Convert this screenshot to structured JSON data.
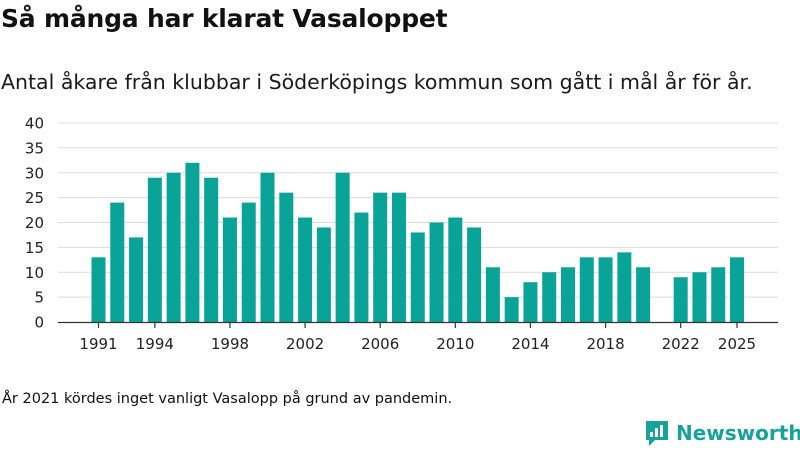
{
  "header": {
    "title": "Så många har klarat Vasaloppet",
    "subtitle": "Antal åkare från klubbar i Söderköpings kommun som gått i mål år för år."
  },
  "footer": {
    "note": "År 2021 kördes inget vanligt Vasalopp på grund av pandemin.",
    "brand": "Newsworthy"
  },
  "colors": {
    "bar": "#0aa398",
    "grid": "#dcdcdc",
    "axis": "#333333",
    "brand": "#17a39a"
  },
  "chart_data": {
    "type": "bar",
    "title": "Så många har klarat Vasaloppet",
    "subtitle": "Antal åkare från klubbar i Söderköpings kommun som gått i mål år för år.",
    "xlabel": "",
    "ylabel": "",
    "ylim": [
      0,
      40
    ],
    "yticks": [
      0,
      5,
      10,
      15,
      20,
      25,
      30,
      35,
      40
    ],
    "xticks": [
      1991,
      1994,
      1998,
      2002,
      2006,
      2010,
      2014,
      2018,
      2022,
      2025
    ],
    "grid": true,
    "legend": "none",
    "categories": [
      1991,
      1992,
      1993,
      1994,
      1995,
      1996,
      1997,
      1998,
      1999,
      2000,
      2001,
      2002,
      2003,
      2004,
      2005,
      2006,
      2007,
      2008,
      2009,
      2010,
      2011,
      2012,
      2013,
      2014,
      2015,
      2016,
      2017,
      2018,
      2019,
      2020,
      2021,
      2022,
      2023,
      2024,
      2025
    ],
    "values": [
      13,
      24,
      17,
      29,
      30,
      32,
      29,
      21,
      24,
      30,
      26,
      21,
      19,
      30,
      22,
      26,
      26,
      18,
      20,
      21,
      19,
      11,
      5,
      8,
      10,
      11,
      13,
      13,
      14,
      11,
      null,
      9,
      10,
      11,
      13
    ]
  }
}
